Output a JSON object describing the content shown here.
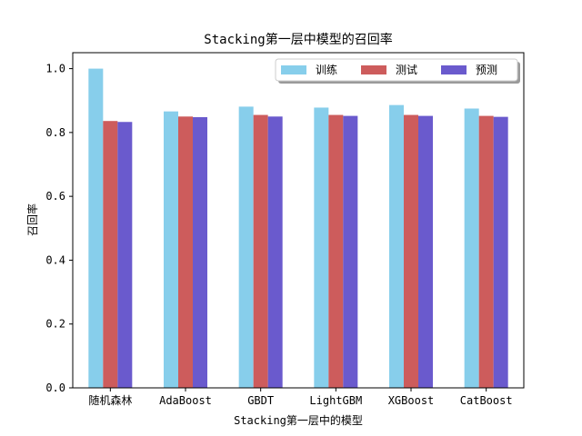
{
  "chart_data": {
    "type": "bar",
    "title": "Stacking第一层中模型的召回率",
    "xlabel": "Stacking第一层中的模型",
    "ylabel": "召回率",
    "categories": [
      "随机森林",
      "AdaBoost",
      "GBDT",
      "LightGBM",
      "XGBoost",
      "CatBoost"
    ],
    "series": [
      {
        "name": "训练",
        "color": "#87ceeb",
        "values": [
          1.0,
          0.866,
          0.881,
          0.878,
          0.886,
          0.875
        ]
      },
      {
        "name": "测试",
        "color": "#cd5c5c",
        "values": [
          0.836,
          0.85,
          0.855,
          0.855,
          0.855,
          0.852
        ]
      },
      {
        "name": "预测",
        "color": "#6a5acd",
        "values": [
          0.833,
          0.848,
          0.85,
          0.852,
          0.852,
          0.849
        ]
      }
    ],
    "ylim": [
      0,
      1.05
    ],
    "yticks": [
      0.0,
      0.2,
      0.4,
      0.6,
      0.8,
      1.0
    ],
    "ytick_labels": [
      "0.0",
      "0.2",
      "0.4",
      "0.6",
      "0.8",
      "1.0"
    ],
    "grid": false,
    "legend_position": "top-right",
    "legend_columns": 3
  }
}
